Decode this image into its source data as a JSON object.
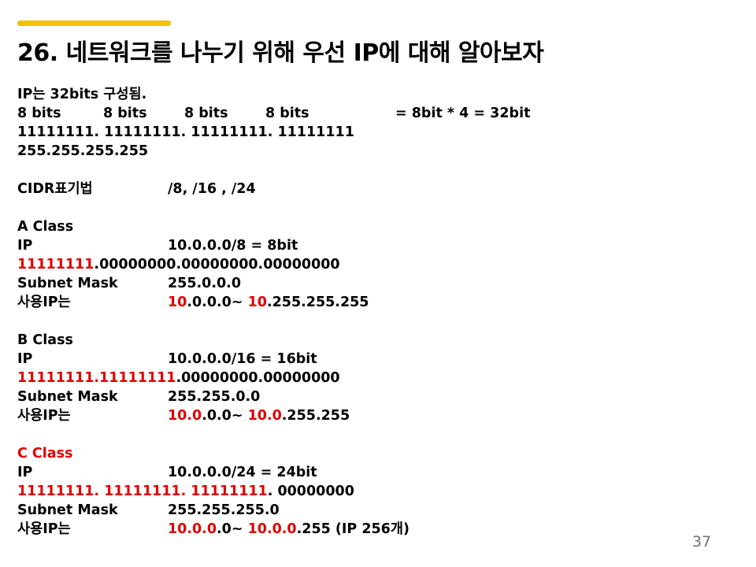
{
  "slide": {
    "title": "26. 네트워크를 나누기 위해 우선 IP에 대해 알아보자",
    "page_number": "37",
    "accent_color": "#f2c200",
    "highlight_color": "#e00000"
  },
  "intro": {
    "line1": "IP는 32bits 구성됨.",
    "bits": [
      "8 bits",
      "8 bits",
      "8 bits",
      "8 bits"
    ],
    "bits_total": "= 8bit * 4 = 32bit",
    "binary": "11111111. 11111111. 11111111. 11111111",
    "decimal": "255.255.255.255"
  },
  "cidr": {
    "label": "CIDR표기법",
    "value": "/8,  /16 ,  /24"
  },
  "class_a": {
    "title": "A Class",
    "ip_label": "IP",
    "ip_value": "10.0.0.0/8    = 8bit",
    "binary_red": "11111111",
    "binary_rest": ".00000000.00000000.00000000",
    "mask_label": "Subnet Mask",
    "mask_value": "255.0.0.0",
    "use_label": "사용IP는",
    "use_start_red": "10",
    "use_start_rest": ".0.0.0~ ",
    "use_end_red": "10",
    "use_end_rest": ".255.255.255"
  },
  "class_b": {
    "title": "B Class",
    "ip_label": "IP",
    "ip_value": "10.0.0.0/16   = 16bit",
    "binary_red": "11111111.11111111",
    "binary_rest": ".00000000.00000000",
    "mask_label": "Subnet Mask",
    "mask_value": "255.255.0.0",
    "use_label": "사용IP는",
    "use_start_red": "10.0",
    "use_start_rest": ".0.0~ ",
    "use_end_red": "10.0",
    "use_end_rest": ".255.255"
  },
  "class_c": {
    "title": "C Class",
    "ip_label": "IP",
    "ip_value": "10.0.0.0/24    = 24bit",
    "binary_red": "11111111. 11111111. 11111111",
    "binary_rest": ". 00000000",
    "mask_label": "Subnet Mask",
    "mask_value": "255.255.255.0",
    "use_label": "사용IP는",
    "use_start_red": "10.0.0",
    "use_start_rest": ".0~ ",
    "use_end_red": "10.0.0",
    "use_end_rest": ".255 (IP 256개)"
  }
}
